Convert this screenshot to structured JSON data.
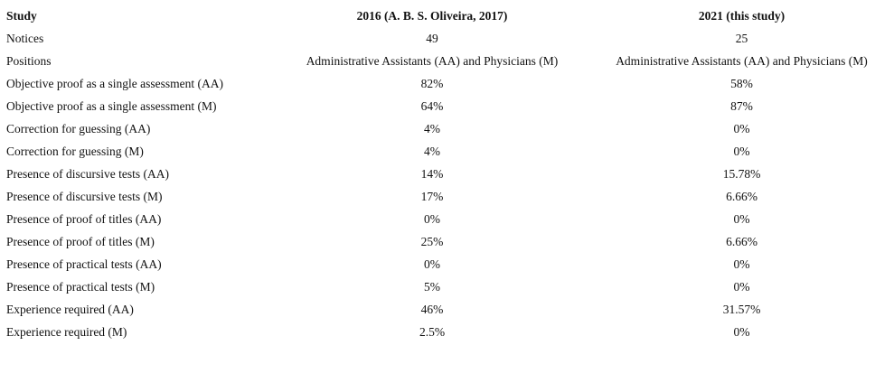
{
  "table": {
    "header": [
      "Study",
      "2016 (A. B. S. Oliveira, 2017)",
      "2021 (this study)"
    ],
    "rows": [
      [
        "Notices",
        "49",
        "25"
      ],
      [
        "Positions",
        "Administrative Assistants (AA) and Physicians (M)",
        "Administrative Assistants (AA) and Physicians (M)"
      ],
      [
        "Objective proof as a single assessment (AA)",
        "82%",
        "58%"
      ],
      [
        "Objective proof as a single assessment (M)",
        "64%",
        "87%"
      ],
      [
        "Correction for guessing (AA)",
        "4%",
        "0%"
      ],
      [
        "Correction for guessing (M)",
        "4%",
        "0%"
      ],
      [
        "Presence of discursive tests (AA)",
        "14%",
        "15.78%"
      ],
      [
        "Presence of discursive tests (M)",
        "17%",
        "6.66%"
      ],
      [
        "Presence of proof of titles (AA)",
        "0%",
        "0%"
      ],
      [
        "Presence of proof of titles (M)",
        "25%",
        "6.66%"
      ],
      [
        "Presence of practical tests (AA)",
        "0%",
        "0%"
      ],
      [
        "Presence of practical tests (M)",
        "5%",
        "0%"
      ],
      [
        "Experience required (AA)",
        "46%",
        "31.57%"
      ],
      [
        "Experience required (M)",
        "2.5%",
        "0%"
      ]
    ]
  }
}
